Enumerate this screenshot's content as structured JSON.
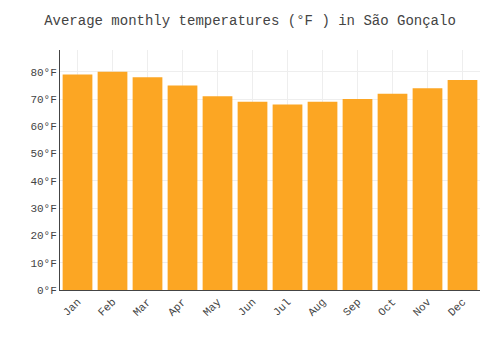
{
  "chart_data": {
    "type": "bar",
    "title": "Average monthly temperatures (°F ) in São Gonçalo",
    "categories": [
      "Jan",
      "Feb",
      "Mar",
      "Apr",
      "May",
      "Jun",
      "Jul",
      "Aug",
      "Sep",
      "Oct",
      "Nov",
      "Dec"
    ],
    "values": [
      79,
      80,
      78,
      75,
      71,
      69,
      68,
      69,
      70,
      72,
      74,
      77
    ],
    "color": "#FCA623",
    "ylim": [
      0,
      88
    ],
    "yticks": [
      {
        "value": 0,
        "label": "0°F"
      },
      {
        "value": 10,
        "label": "10°F"
      },
      {
        "value": 20,
        "label": "20°F"
      },
      {
        "value": 30,
        "label": "30°F"
      },
      {
        "value": 40,
        "label": "40°F"
      },
      {
        "value": 50,
        "label": "50°F"
      },
      {
        "value": 60,
        "label": "60°F"
      },
      {
        "value": 70,
        "label": "70°F"
      },
      {
        "value": 80,
        "label": "80°F"
      }
    ],
    "grid": true
  }
}
